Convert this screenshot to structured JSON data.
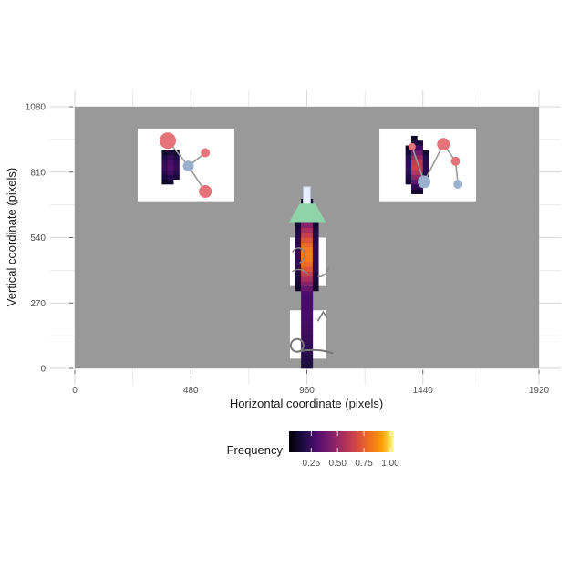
{
  "chart_data": {
    "type": "heatmap",
    "title": "",
    "xlabel": "Horizontal coordinate (pixels)",
    "ylabel": "Vertical coordinate (pixels)",
    "xlim": [
      0,
      1920
    ],
    "ylim": [
      0,
      1080
    ],
    "x_ticks": [
      0,
      480,
      960,
      1440,
      1920
    ],
    "y_ticks": [
      0,
      270,
      540,
      810,
      1080
    ],
    "grid": true,
    "legend": {
      "title": "Frequency",
      "position": "bottom",
      "ticks": [
        "0.25",
        "0.50",
        "0.75",
        "1.00"
      ],
      "tick_values": [
        0.25,
        0.5,
        0.75,
        1.0
      ],
      "palette": "inferno"
    },
    "colors": {
      "screen_background": "#999999",
      "panel_grid": "#d9d9d9",
      "molecule_red": "#e5737a",
      "molecule_blue": "#9bb0cf",
      "cone_green": "#8fd3a8"
    },
    "stimuli": [
      {
        "name": "left-molecule",
        "x_range": [
          260,
          660
        ],
        "y_range": [
          690,
          990
        ]
      },
      {
        "name": "right-molecule",
        "x_range": [
          1260,
          1660
        ],
        "y_range": [
          690,
          990
        ]
      },
      {
        "name": "top-figure",
        "x_range": [
          890,
          1040
        ],
        "y_range": [
          340,
          540
        ]
      },
      {
        "name": "bottom-figure",
        "x_range": [
          890,
          1040
        ],
        "y_range": [
          40,
          240
        ]
      }
    ],
    "hotspots": [
      {
        "x": 960,
        "y": 470,
        "sx": 20,
        "sy": 105,
        "peak": 1.0
      },
      {
        "x": 960,
        "y": 250,
        "sx": 16,
        "sy": 210,
        "peak": 0.33
      },
      {
        "x": 960,
        "y": 110,
        "sx": 16,
        "sy": 50,
        "peak": 0.22
      },
      {
        "x": 1415,
        "y": 835,
        "sx": 22,
        "sy": 55,
        "peak": 0.72
      },
      {
        "x": 395,
        "y": 835,
        "sx": 28,
        "sy": 45,
        "peak": 0.28
      }
    ]
  }
}
